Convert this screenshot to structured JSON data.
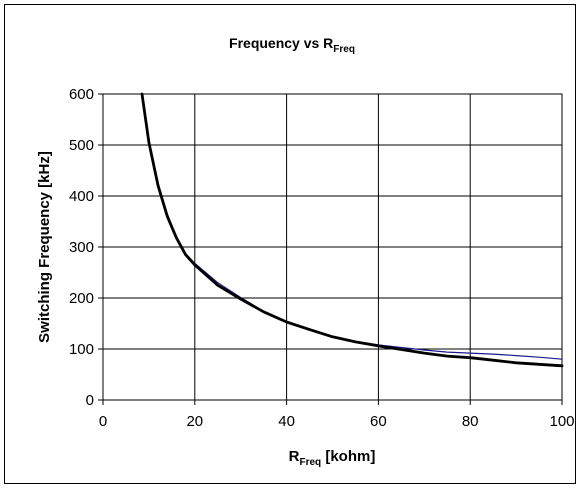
{
  "chart_data": {
    "type": "line",
    "title": "Frequency vs R",
    "title_subscript": "Freq",
    "xlabel": "R",
    "xlabel_subscript": "Freq",
    "xlabel_units": " [kohm]",
    "ylabel": "Switching Frequency [kHz]",
    "xlim": [
      0,
      100
    ],
    "ylim": [
      0,
      600
    ],
    "xticks": [
      0,
      20,
      40,
      60,
      80,
      100
    ],
    "yticks": [
      0,
      100,
      200,
      300,
      400,
      500,
      600
    ],
    "grid": true,
    "legend": "none",
    "series": [
      {
        "color": "#1a1a8c",
        "width": 1.2,
        "x": [
          8.5,
          10,
          12,
          14,
          16,
          18,
          20,
          25,
          30,
          35,
          40,
          45,
          50,
          55,
          60,
          65,
          70,
          75,
          80,
          85,
          90,
          95,
          100
        ],
        "y": [
          600,
          510,
          425,
          365,
          320,
          287,
          268,
          230,
          201,
          174,
          154,
          139,
          125,
          115,
          108,
          103,
          98,
          94,
          92,
          90,
          87,
          84,
          80
        ]
      },
      {
        "color": "#000000",
        "width": 2.8,
        "x": [
          8.5,
          10,
          12,
          14,
          16,
          18,
          20,
          25,
          30,
          35,
          40,
          45,
          50,
          55,
          60,
          65,
          70,
          75,
          80,
          85,
          90,
          95,
          100
        ],
        "y": [
          600,
          505,
          420,
          360,
          318,
          285,
          265,
          225,
          198,
          173,
          153,
          138,
          124,
          114,
          106,
          99,
          92,
          86,
          83,
          78,
          73,
          70,
          67
        ]
      }
    ]
  }
}
